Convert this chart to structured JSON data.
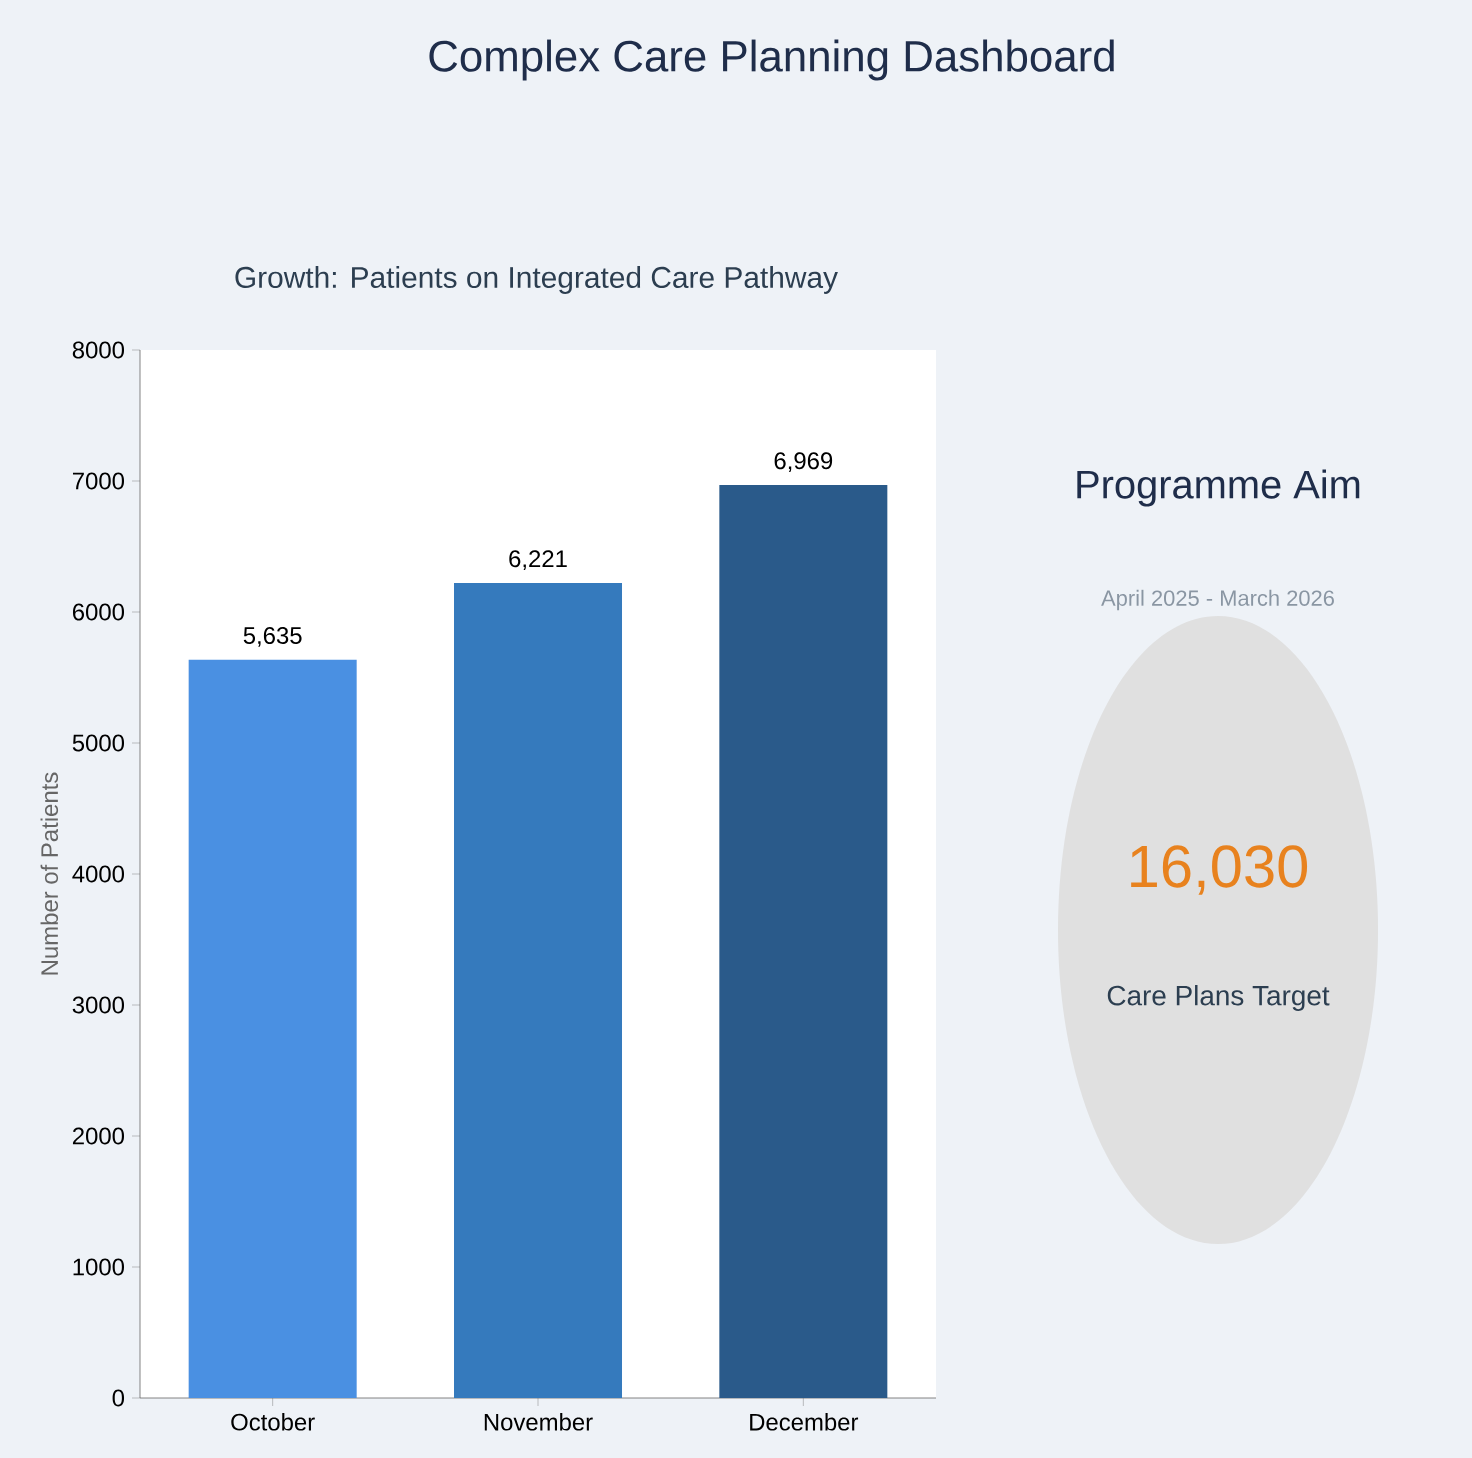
{
  "chart_data": [
    {
      "type": "bar",
      "title": "Complex Care Planning Dashboard",
      "subtitle": "Growth: Patients on Integrated Care Pathway",
      "ylabel": "Number of Patients",
      "categories": [
        "October",
        "November",
        "December"
      ],
      "values": [
        5635,
        6221,
        6969
      ],
      "colors": [
        "#4a90e2",
        "#357abd",
        "#2a5a8a"
      ],
      "value_labels": [
        "5,635",
        "6,221",
        "6,969"
      ],
      "ylim": [
        0,
        8000
      ],
      "yticks": [
        0,
        1000,
        2000,
        3000,
        4000,
        5000,
        6000,
        7000,
        8000
      ]
    },
    {
      "type": "other",
      "title": "Programme Aim",
      "subtitle": "April 2025 - March 2026",
      "annotations": [
        "16,030",
        "Care Plans Target"
      ]
    }
  ]
}
